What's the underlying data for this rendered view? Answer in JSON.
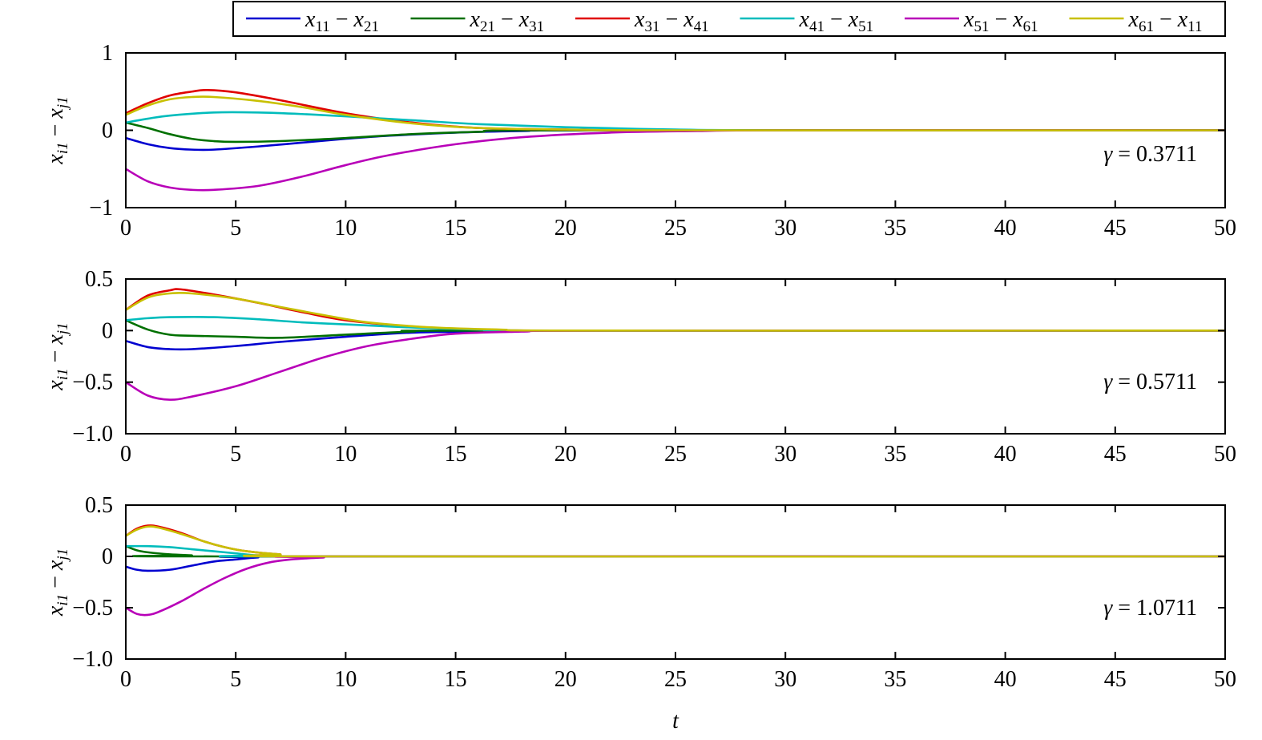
{
  "legend": {
    "entries": [
      {
        "var": "x",
        "a": "11",
        "b": "21",
        "color": "#0000d0"
      },
      {
        "var": "x",
        "a": "21",
        "b": "31",
        "color": "#007000"
      },
      {
        "var": "x",
        "a": "31",
        "b": "41",
        "color": "#e00000"
      },
      {
        "var": "x",
        "a": "41",
        "b": "51",
        "color": "#00bcbc"
      },
      {
        "var": "x",
        "a": "51",
        "b": "61",
        "color": "#b800b8"
      },
      {
        "var": "x",
        "a": "61",
        "b": "11",
        "color": "#c8c000"
      }
    ],
    "placement": "top-right, above first panel"
  },
  "shared_xlabel": "t",
  "chart_data": [
    {
      "type": "line",
      "ylabel": {
        "var1": "x",
        "sub1": "i1",
        "minus": "−",
        "var2": "x",
        "sub2": "j1"
      },
      "xlim": [
        0,
        50
      ],
      "ylim": [
        -1,
        1
      ],
      "xticks": [
        0,
        5,
        10,
        15,
        20,
        25,
        30,
        35,
        40,
        45,
        50
      ],
      "yticks": [
        -1,
        0,
        1
      ],
      "yticklabels": [
        "−1",
        "0",
        "1"
      ],
      "annotation": {
        "symbol": "γ",
        "text": " = 0.3711"
      },
      "grid": false,
      "series": [
        {
          "points": [
            [
              0,
              -0.1
            ],
            [
              1,
              -0.18
            ],
            [
              2,
              -0.23
            ],
            [
              3,
              -0.25
            ],
            [
              4,
              -0.25
            ],
            [
              6,
              -0.21
            ],
            [
              8,
              -0.16
            ],
            [
              10,
              -0.11
            ],
            [
              12,
              -0.07
            ],
            [
              15,
              -0.03
            ],
            [
              18,
              -0.01
            ],
            [
              22,
              0
            ],
            [
              50,
              0
            ]
          ]
        },
        {
          "points": [
            [
              0,
              0.1
            ],
            [
              1,
              0.03
            ],
            [
              2,
              -0.05
            ],
            [
              3,
              -0.11
            ],
            [
              4,
              -0.14
            ],
            [
              5,
              -0.15
            ],
            [
              7,
              -0.14
            ],
            [
              10,
              -0.1
            ],
            [
              13,
              -0.05
            ],
            [
              16,
              -0.02
            ],
            [
              20,
              0
            ],
            [
              50,
              0
            ]
          ]
        },
        {
          "points": [
            [
              0,
              0.22
            ],
            [
              1,
              0.35
            ],
            [
              2,
              0.45
            ],
            [
              3,
              0.5
            ],
            [
              3.7,
              0.52
            ],
            [
              5,
              0.49
            ],
            [
              7,
              0.39
            ],
            [
              10,
              0.22
            ],
            [
              13,
              0.1
            ],
            [
              16,
              0.03
            ],
            [
              20,
              0.01
            ],
            [
              25,
              0
            ],
            [
              50,
              0
            ]
          ]
        },
        {
          "points": [
            [
              0,
              0.1
            ],
            [
              1,
              0.15
            ],
            [
              2,
              0.19
            ],
            [
              4,
              0.23
            ],
            [
              6,
              0.23
            ],
            [
              8,
              0.21
            ],
            [
              10,
              0.18
            ],
            [
              13,
              0.13
            ],
            [
              16,
              0.08
            ],
            [
              20,
              0.04
            ],
            [
              25,
              0.01
            ],
            [
              30,
              0
            ],
            [
              50,
              0
            ]
          ]
        },
        {
          "points": [
            [
              0,
              -0.5
            ],
            [
              1,
              -0.66
            ],
            [
              2,
              -0.74
            ],
            [
              3,
              -0.77
            ],
            [
              4,
              -0.77
            ],
            [
              6,
              -0.72
            ],
            [
              8,
              -0.6
            ],
            [
              10,
              -0.45
            ],
            [
              12,
              -0.32
            ],
            [
              15,
              -0.18
            ],
            [
              18,
              -0.09
            ],
            [
              22,
              -0.03
            ],
            [
              26,
              -0.01
            ],
            [
              30,
              0
            ],
            [
              50,
              0
            ]
          ]
        },
        {
          "points": [
            [
              0,
              0.2
            ],
            [
              1,
              0.32
            ],
            [
              2,
              0.4
            ],
            [
              3,
              0.43
            ],
            [
              4,
              0.43
            ],
            [
              6,
              0.38
            ],
            [
              8,
              0.3
            ],
            [
              10,
              0.2
            ],
            [
              13,
              0.09
            ],
            [
              16,
              0.03
            ],
            [
              20,
              0.01
            ],
            [
              25,
              0
            ],
            [
              50,
              0
            ]
          ]
        }
      ]
    },
    {
      "type": "line",
      "ylabel": {
        "var1": "x",
        "sub1": "i1",
        "minus": "−",
        "var2": "x",
        "sub2": "j1"
      },
      "xlim": [
        0,
        50
      ],
      "ylim": [
        -1,
        0.5
      ],
      "xticks": [
        0,
        5,
        10,
        15,
        20,
        25,
        30,
        35,
        40,
        45,
        50
      ],
      "yticks": [
        -1,
        -0.5,
        0,
        0.5
      ],
      "yticklabels": [
        "−1.0",
        "−0.5",
        "0",
        "0.5"
      ],
      "annotation": {
        "symbol": "γ",
        "text": " = 0.5711"
      },
      "grid": false,
      "series": [
        {
          "points": [
            [
              0,
              -0.1
            ],
            [
              1,
              -0.16
            ],
            [
              2,
              -0.18
            ],
            [
              3,
              -0.18
            ],
            [
              5,
              -0.15
            ],
            [
              7,
              -0.11
            ],
            [
              10,
              -0.06
            ],
            [
              13,
              -0.02
            ],
            [
              16,
              -0.01
            ],
            [
              20,
              0
            ],
            [
              50,
              0
            ]
          ]
        },
        {
          "points": [
            [
              0,
              0.1
            ],
            [
              1,
              0.01
            ],
            [
              2,
              -0.04
            ],
            [
              3,
              -0.05
            ],
            [
              5,
              -0.06
            ],
            [
              7,
              -0.07
            ],
            [
              10,
              -0.04
            ],
            [
              13,
              -0.01
            ],
            [
              16,
              0
            ],
            [
              50,
              0
            ]
          ]
        },
        {
          "points": [
            [
              0,
              0.2
            ],
            [
              1,
              0.34
            ],
            [
              2,
              0.39
            ],
            [
              2.5,
              0.4
            ],
            [
              4,
              0.35
            ],
            [
              6,
              0.27
            ],
            [
              8,
              0.18
            ],
            [
              10,
              0.1
            ],
            [
              13,
              0.04
            ],
            [
              16,
              0.01
            ],
            [
              20,
              0
            ],
            [
              50,
              0
            ]
          ]
        },
        {
          "points": [
            [
              0,
              0.1
            ],
            [
              1,
              0.12
            ],
            [
              2,
              0.13
            ],
            [
              4,
              0.13
            ],
            [
              6,
              0.11
            ],
            [
              8,
              0.08
            ],
            [
              10,
              0.06
            ],
            [
              13,
              0.03
            ],
            [
              16,
              0.01
            ],
            [
              20,
              0
            ],
            [
              50,
              0
            ]
          ]
        },
        {
          "points": [
            [
              0,
              -0.5
            ],
            [
              1,
              -0.63
            ],
            [
              2,
              -0.67
            ],
            [
              3,
              -0.64
            ],
            [
              5,
              -0.54
            ],
            [
              7,
              -0.4
            ],
            [
              9,
              -0.26
            ],
            [
              11,
              -0.15
            ],
            [
              13,
              -0.08
            ],
            [
              15,
              -0.03
            ],
            [
              18,
              -0.01
            ],
            [
              22,
              0
            ],
            [
              50,
              0
            ]
          ]
        },
        {
          "points": [
            [
              0,
              0.2
            ],
            [
              1,
              0.32
            ],
            [
              2,
              0.36
            ],
            [
              3,
              0.36
            ],
            [
              5,
              0.31
            ],
            [
              7,
              0.23
            ],
            [
              9,
              0.15
            ],
            [
              11,
              0.08
            ],
            [
              14,
              0.03
            ],
            [
              17,
              0.01
            ],
            [
              21,
              0
            ],
            [
              50,
              0
            ]
          ]
        }
      ]
    },
    {
      "type": "line",
      "ylabel": {
        "var1": "x",
        "sub1": "i1",
        "minus": "−",
        "var2": "x",
        "sub2": "j1"
      },
      "xlim": [
        0,
        50
      ],
      "ylim": [
        -1,
        0.5
      ],
      "xticks": [
        0,
        5,
        10,
        15,
        20,
        25,
        30,
        35,
        40,
        45,
        50
      ],
      "yticks": [
        -1,
        -0.5,
        0,
        0.5
      ],
      "yticklabels": [
        "−1.0",
        "−0.5",
        "0",
        "0.5"
      ],
      "annotation": {
        "symbol": "γ",
        "text": " = 1.0711"
      },
      "grid": false,
      "series": [
        {
          "points": [
            [
              0,
              -0.1
            ],
            [
              0.5,
              -0.13
            ],
            [
              1,
              -0.14
            ],
            [
              2,
              -0.13
            ],
            [
              3,
              -0.09
            ],
            [
              4,
              -0.05
            ],
            [
              5,
              -0.03
            ],
            [
              6,
              -0.01
            ],
            [
              8,
              0
            ],
            [
              50,
              0
            ]
          ]
        },
        {
          "points": [
            [
              0,
              0.1
            ],
            [
              0.5,
              0.06
            ],
            [
              1,
              0.04
            ],
            [
              2,
              0.02
            ],
            [
              3,
              0.01
            ],
            [
              4,
              0
            ],
            [
              50,
              0
            ]
          ]
        },
        {
          "points": [
            [
              0,
              0.2
            ],
            [
              0.5,
              0.27
            ],
            [
              1,
              0.3
            ],
            [
              1.5,
              0.29
            ],
            [
              2.5,
              0.23
            ],
            [
              3.5,
              0.15
            ],
            [
              4.5,
              0.09
            ],
            [
              5.5,
              0.05
            ],
            [
              7,
              0.02
            ],
            [
              9,
              0
            ],
            [
              50,
              0
            ]
          ]
        },
        {
          "points": [
            [
              0,
              0.1
            ],
            [
              1,
              0.1
            ],
            [
              2,
              0.09
            ],
            [
              3,
              0.07
            ],
            [
              4,
              0.05
            ],
            [
              5,
              0.03
            ],
            [
              6,
              0.01
            ],
            [
              8,
              0
            ],
            [
              50,
              0
            ]
          ]
        },
        {
          "points": [
            [
              0,
              -0.5
            ],
            [
              0.5,
              -0.56
            ],
            [
              1,
              -0.57
            ],
            [
              1.5,
              -0.54
            ],
            [
              2.5,
              -0.44
            ],
            [
              3.5,
              -0.32
            ],
            [
              4.5,
              -0.21
            ],
            [
              5.5,
              -0.12
            ],
            [
              6.5,
              -0.06
            ],
            [
              7.5,
              -0.03
            ],
            [
              9,
              -0.01
            ],
            [
              10,
              0
            ],
            [
              50,
              0
            ]
          ]
        },
        {
          "points": [
            [
              0,
              0.2
            ],
            [
              0.5,
              0.26
            ],
            [
              1,
              0.29
            ],
            [
              1.5,
              0.28
            ],
            [
              2.5,
              0.22
            ],
            [
              3.5,
              0.15
            ],
            [
              4.5,
              0.09
            ],
            [
              5.5,
              0.05
            ],
            [
              7,
              0.02
            ],
            [
              9,
              0
            ],
            [
              50,
              0
            ]
          ]
        }
      ]
    }
  ]
}
